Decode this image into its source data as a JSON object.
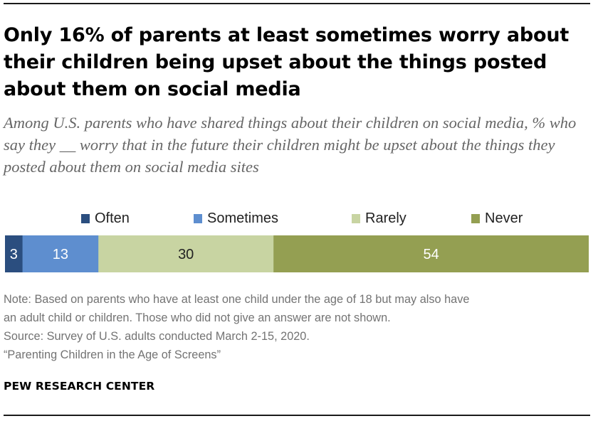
{
  "title": "Only 16% of parents at least sometimes worry about their children being upset about the things posted about them on social media",
  "subtitle": "Among U.S. parents who have shared things about their children on social media, % who say they __ worry that in the future their children might be upset about the things they posted about them on social media sites",
  "chart_data": {
    "type": "bar",
    "orientation": "horizontal",
    "stacked": true,
    "categories": [
      ""
    ],
    "series": [
      {
        "name": "Often",
        "values": [
          3
        ],
        "color": "#2b4e7f"
      },
      {
        "name": "Sometimes",
        "values": [
          13
        ],
        "color": "#5e8ecf"
      },
      {
        "name": "Rarely",
        "values": [
          30
        ],
        "color": "#c8d4a2"
      },
      {
        "name": "Never",
        "values": [
          54
        ],
        "color": "#949f52"
      }
    ],
    "data_labels": [
      "3",
      "13",
      "30",
      "54"
    ],
    "data_label_colors": [
      "#ffffff",
      "#ffffff",
      "#222222",
      "#ffffff"
    ],
    "xlim": [
      0,
      100
    ],
    "legend_position": "top",
    "grid": false
  },
  "note_lines": [
    "Note: Based on parents who have at least one child under the age of 18 but may also have",
    "an adult child or children. Those who did not give an answer are not shown.",
    "Source: Survey of U.S. adults conducted March 2-15, 2020.",
    "“Parenting Children in the Age of Screens”"
  ],
  "brand": "PEW RESEARCH CENTER"
}
